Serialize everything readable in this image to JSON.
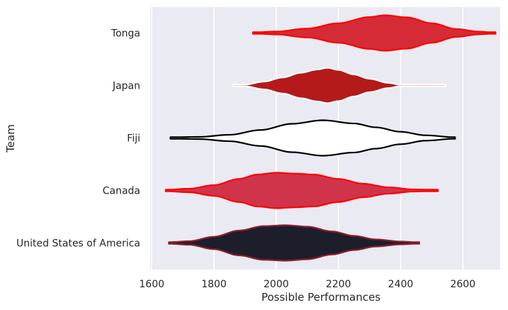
{
  "chart_data": {
    "type": "violin",
    "orientation": "horizontal",
    "xlabel": "Possible Performances",
    "ylabel": "Team",
    "xlim": [
      1595,
      2720
    ],
    "xticks": [
      1600,
      1800,
      2000,
      2200,
      2400,
      2600
    ],
    "grid": "vertical",
    "background": "#eaeaf2",
    "categories": [
      "Tonga",
      "Japan",
      "Fiji",
      "Canada",
      "United States of America"
    ],
    "series": [
      {
        "category": "Tonga",
        "fill": "#d42b36",
        "edge": "#ff0000",
        "min": 1925,
        "max": 2705,
        "profile": [
          [
            1925,
            0.03
          ],
          [
            2000,
            0.08
          ],
          [
            2100,
            0.25
          ],
          [
            2200,
            0.55
          ],
          [
            2300,
            0.9
          ],
          [
            2350,
            1.0
          ],
          [
            2420,
            0.88
          ],
          [
            2500,
            0.55
          ],
          [
            2580,
            0.22
          ],
          [
            2650,
            0.08
          ],
          [
            2705,
            0.02
          ]
        ]
      },
      {
        "category": "Japan",
        "fill": "#b41a1a",
        "edge": "#ffffff",
        "min": 1860,
        "max": 2545,
        "profile": [
          [
            1860,
            0.0
          ],
          [
            1900,
            0.05
          ],
          [
            1960,
            0.22
          ],
          [
            2020,
            0.45
          ],
          [
            2080,
            0.72
          ],
          [
            2130,
            0.9
          ],
          [
            2165,
            1.0
          ],
          [
            2200,
            0.88
          ],
          [
            2250,
            0.62
          ],
          [
            2300,
            0.38
          ],
          [
            2360,
            0.15
          ],
          [
            2400,
            0.04
          ],
          [
            2460,
            0.03
          ],
          [
            2545,
            0.0
          ]
        ]
      },
      {
        "category": "Fiji",
        "fill": "#ffffff",
        "edge": "#000000",
        "min": 1660,
        "max": 2575,
        "profile": [
          [
            1660,
            0.04
          ],
          [
            1750,
            0.06
          ],
          [
            1850,
            0.18
          ],
          [
            1950,
            0.45
          ],
          [
            2050,
            0.8
          ],
          [
            2150,
            1.0
          ],
          [
            2250,
            0.82
          ],
          [
            2320,
            0.6
          ],
          [
            2400,
            0.35
          ],
          [
            2480,
            0.15
          ],
          [
            2575,
            0.04
          ]
        ]
      },
      {
        "category": "Canada",
        "fill": "#d0344a",
        "edge": "#ff0000",
        "min": 1645,
        "max": 2520,
        "profile": [
          [
            1645,
            0.04
          ],
          [
            1720,
            0.1
          ],
          [
            1800,
            0.3
          ],
          [
            1880,
            0.65
          ],
          [
            1940,
            0.9
          ],
          [
            2000,
            1.0
          ],
          [
            2060,
            0.95
          ],
          [
            2120,
            0.9
          ],
          [
            2200,
            0.65
          ],
          [
            2280,
            0.38
          ],
          [
            2360,
            0.18
          ],
          [
            2440,
            0.06
          ],
          [
            2520,
            0.03
          ]
        ]
      },
      {
        "category": "United States of America",
        "fill": "#1c1e2b",
        "edge": "#8b1e2a",
        "min": 1655,
        "max": 2460,
        "profile": [
          [
            1655,
            0.04
          ],
          [
            1720,
            0.1
          ],
          [
            1800,
            0.35
          ],
          [
            1880,
            0.7
          ],
          [
            1960,
            0.95
          ],
          [
            2030,
            1.0
          ],
          [
            2100,
            0.92
          ],
          [
            2180,
            0.65
          ],
          [
            2250,
            0.4
          ],
          [
            2320,
            0.2
          ],
          [
            2400,
            0.08
          ],
          [
            2460,
            0.03
          ]
        ]
      }
    ]
  }
}
